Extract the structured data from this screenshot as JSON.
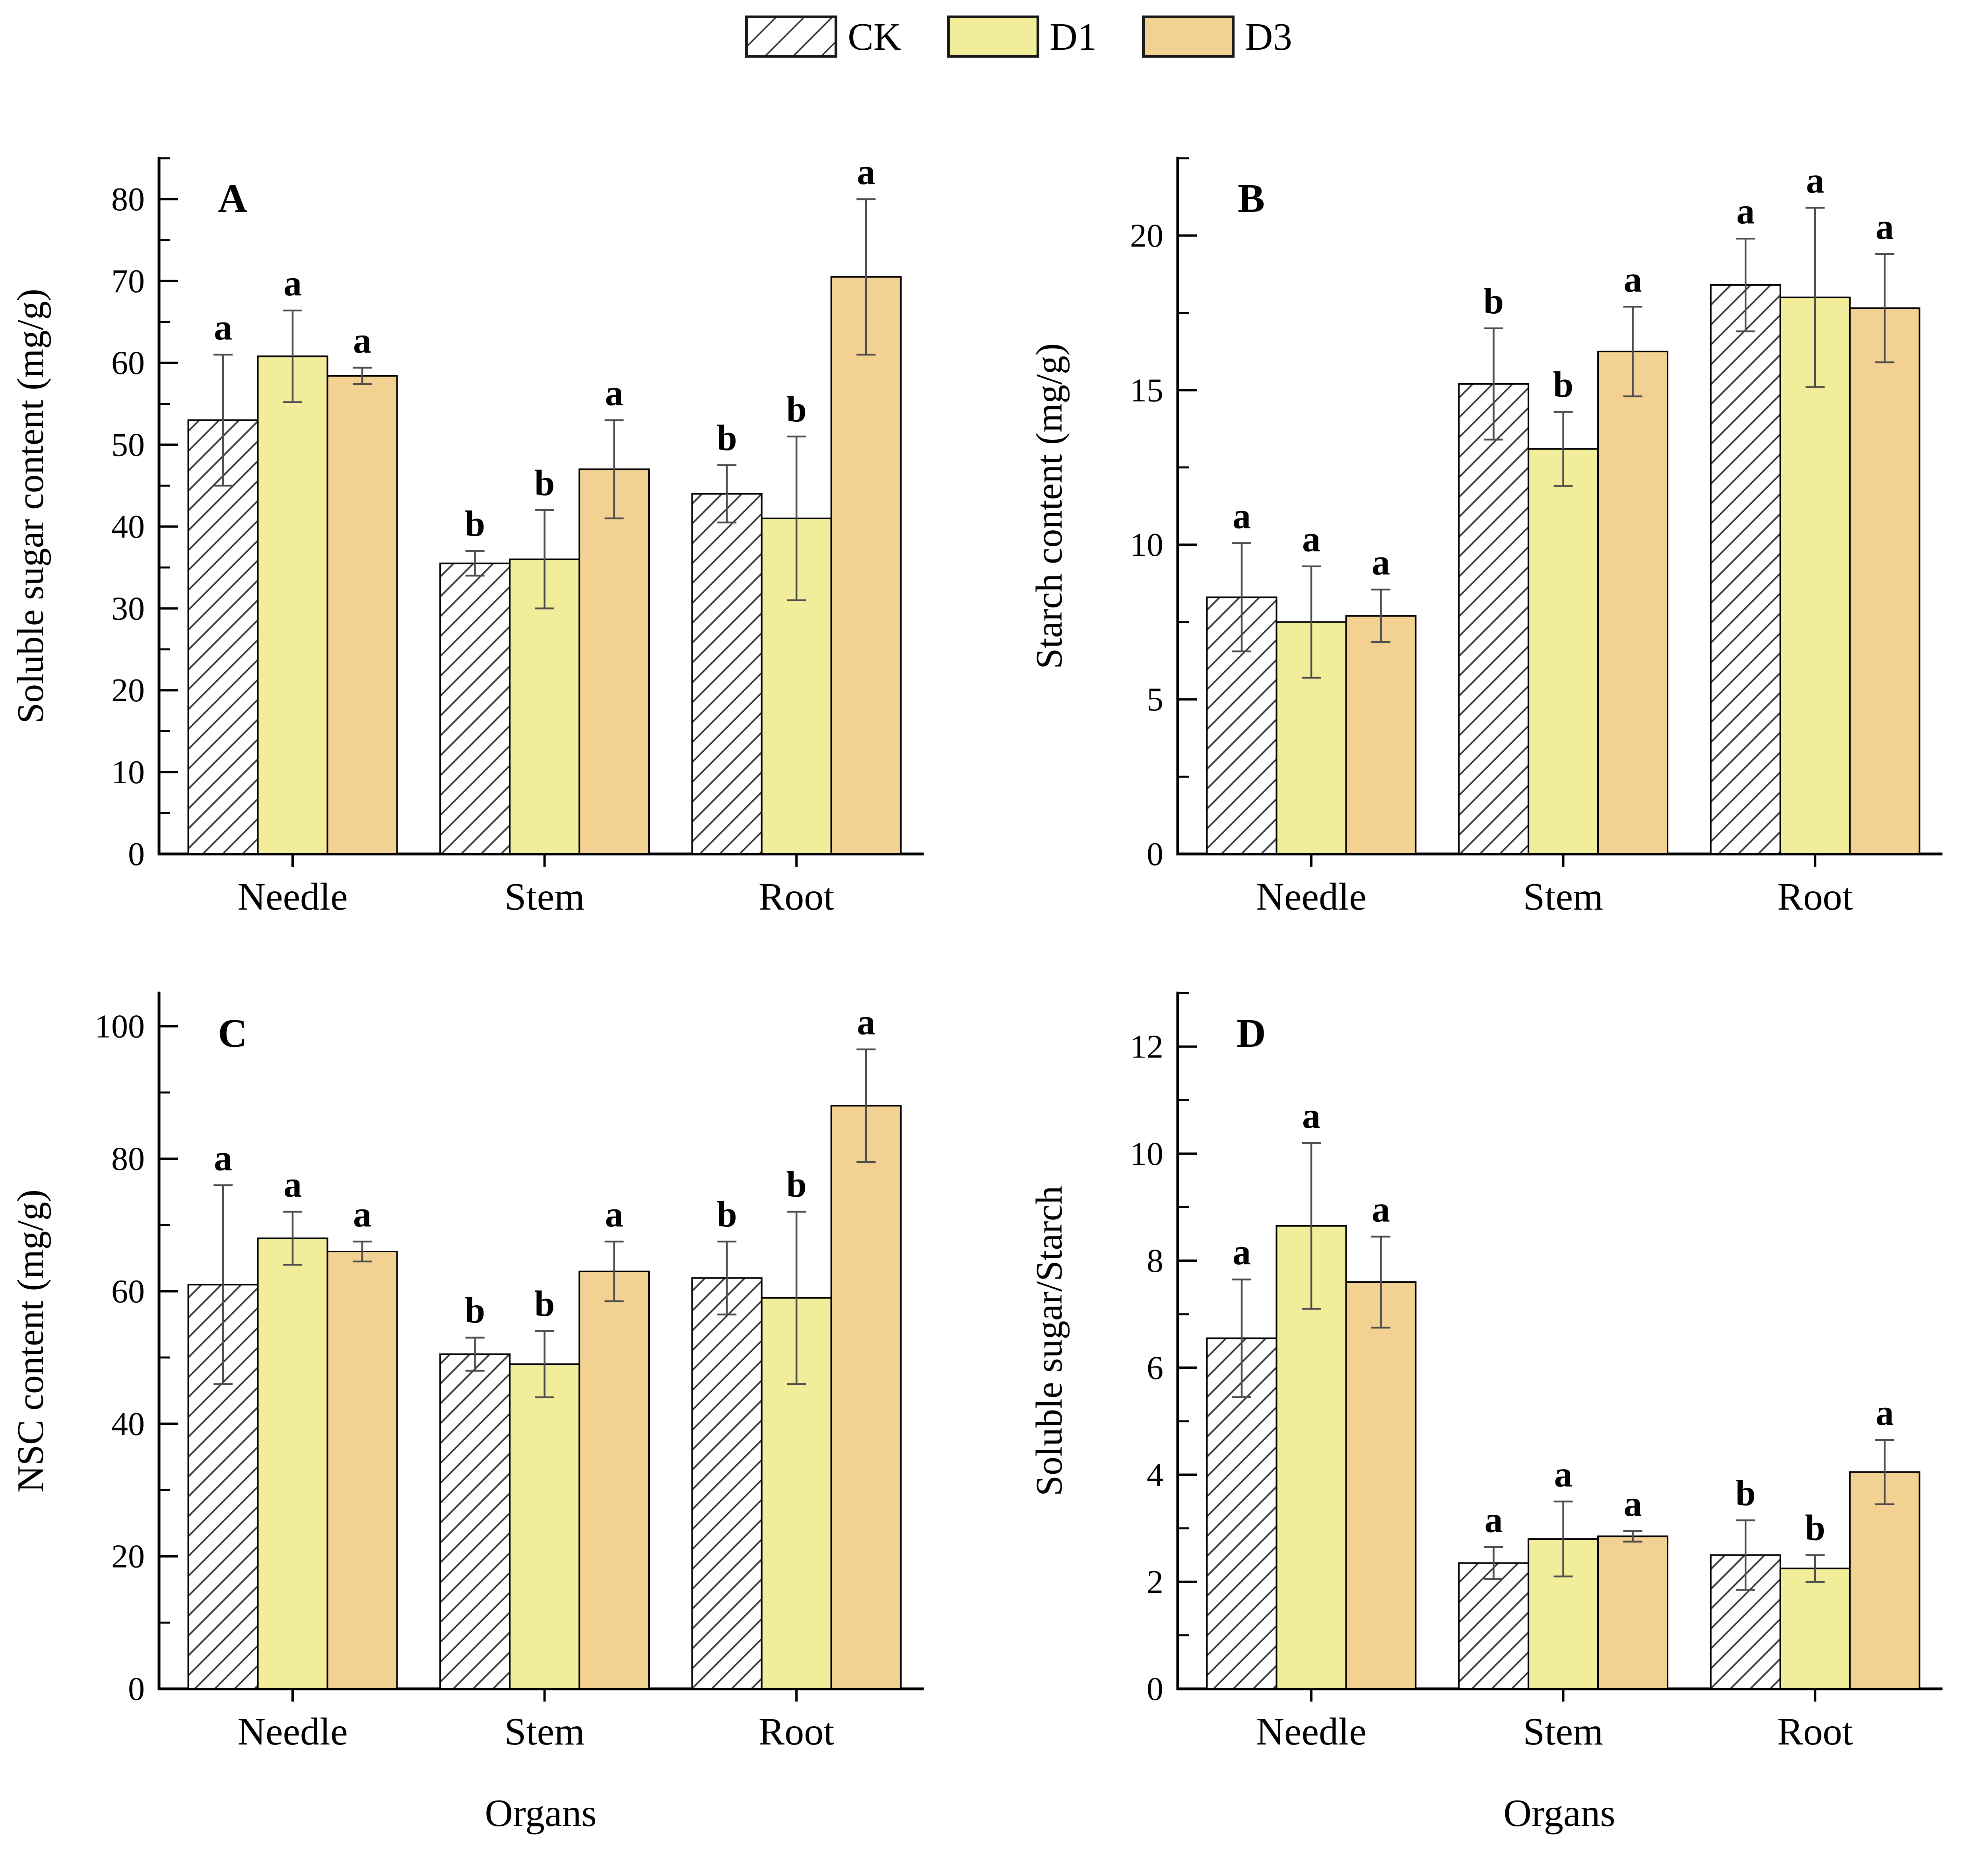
{
  "legend": {
    "items": [
      {
        "label": "CK",
        "fill": "hatch"
      },
      {
        "label": "D1",
        "fill": "#F1ED9B"
      },
      {
        "label": "D3",
        "fill": "#F2D193"
      }
    ]
  },
  "colors": {
    "ck_fill": "#FFFFFF",
    "d1_fill": "#F1ED9B",
    "d3_fill": "#F2D193",
    "bar_stroke": "#000000",
    "hatch_line": "#3a3a3a",
    "error_bar": "#4d4d4d",
    "axis": "#000000"
  },
  "chart_data": [
    {
      "type": "bar",
      "panel_label": "A",
      "ylabel": "Soluble sugar content (mg/g)",
      "xlabel": "",
      "categories": [
        "Needle",
        "Stem",
        "Root"
      ],
      "ylim": [
        0,
        85
      ],
      "ytick_step": 10,
      "yminor_step": 5,
      "legend_position": "top-center-shared",
      "grid": false,
      "series": [
        {
          "name": "CK",
          "values": [
            53,
            35.5,
            44
          ],
          "errors": [
            8,
            1.5,
            3.5
          ],
          "letters": [
            "a",
            "b",
            "b"
          ]
        },
        {
          "name": "D1",
          "values": [
            60.8,
            36,
            41
          ],
          "errors": [
            5.6,
            6,
            10
          ],
          "letters": [
            "a",
            "b",
            "b"
          ]
        },
        {
          "name": "D3",
          "values": [
            58.4,
            47,
            70.5
          ],
          "errors": [
            1,
            6,
            9.5
          ],
          "letters": [
            "a",
            "a",
            "a"
          ]
        }
      ]
    },
    {
      "type": "bar",
      "panel_label": "B",
      "ylabel": "Starch content (mg/g)",
      "xlabel": "",
      "categories": [
        "Needle",
        "Stem",
        "Root"
      ],
      "ylim": [
        0,
        22.5
      ],
      "ytick_step": 5,
      "yminor_step": 2.5,
      "legend_position": "top-center-shared",
      "grid": false,
      "series": [
        {
          "name": "CK",
          "values": [
            8.3,
            15.2,
            18.4
          ],
          "errors": [
            1.75,
            1.8,
            1.5
          ],
          "letters": [
            "a",
            "b",
            "a"
          ]
        },
        {
          "name": "D1",
          "values": [
            7.5,
            13.1,
            18.0
          ],
          "errors": [
            1.8,
            1.2,
            2.9
          ],
          "letters": [
            "a",
            "b",
            "a"
          ]
        },
        {
          "name": "D3",
          "values": [
            7.7,
            16.25,
            17.65
          ],
          "errors": [
            0.85,
            1.45,
            1.75
          ],
          "letters": [
            "a",
            "a",
            "a"
          ]
        }
      ]
    },
    {
      "type": "bar",
      "panel_label": "C",
      "ylabel": "NSC content (mg/g)",
      "xlabel": "Organs",
      "categories": [
        "Needle",
        "Stem",
        "Root"
      ],
      "ylim": [
        0,
        105
      ],
      "ytick_step": 20,
      "yminor_step": 10,
      "legend_position": "top-center-shared",
      "grid": false,
      "series": [
        {
          "name": "CK",
          "values": [
            61,
            50.5,
            62
          ],
          "errors": [
            15,
            2.5,
            5.5
          ],
          "letters": [
            "a",
            "b",
            "b"
          ]
        },
        {
          "name": "D1",
          "values": [
            68,
            49,
            59
          ],
          "errors": [
            4,
            5,
            13
          ],
          "letters": [
            "a",
            "b",
            "b"
          ]
        },
        {
          "name": "D3",
          "values": [
            66,
            63,
            88
          ],
          "errors": [
            1.5,
            4.5,
            8.5
          ],
          "letters": [
            "a",
            "a",
            "a"
          ]
        }
      ]
    },
    {
      "type": "bar",
      "panel_label": "D",
      "ylabel": "Soluble sugar/Starch",
      "xlabel": "Organs",
      "categories": [
        "Needle",
        "Stem",
        "Root"
      ],
      "ylim": [
        0,
        13
      ],
      "ytick_step": 2,
      "yminor_step": 1,
      "legend_position": "top-center-shared",
      "grid": false,
      "series": [
        {
          "name": "CK",
          "values": [
            6.55,
            2.35,
            2.5
          ],
          "errors": [
            1.1,
            0.3,
            0.65
          ],
          "letters": [
            "a",
            "a",
            "b"
          ]
        },
        {
          "name": "D1",
          "values": [
            8.65,
            2.8,
            2.25
          ],
          "errors": [
            1.55,
            0.7,
            0.25
          ],
          "letters": [
            "a",
            "a",
            "b"
          ]
        },
        {
          "name": "D3",
          "values": [
            7.6,
            2.85,
            4.05
          ],
          "errors": [
            0.85,
            0.1,
            0.6
          ],
          "letters": [
            "a",
            "a",
            "a"
          ]
        }
      ]
    }
  ]
}
